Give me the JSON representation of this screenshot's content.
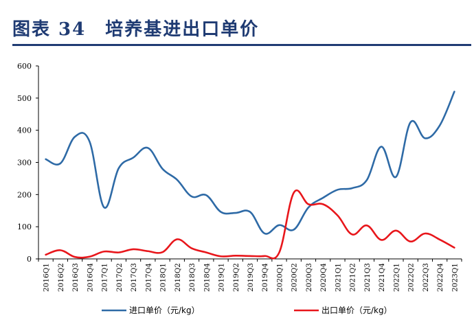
{
  "figure": {
    "title": "图表 34　培养基进出口单价"
  },
  "chart_data": {
    "type": "line",
    "categories": [
      "2016Q1",
      "2016Q2",
      "2016Q3",
      "2016Q4",
      "2017Q1",
      "2017Q2",
      "2017Q3",
      "2017Q4",
      "2018Q1",
      "2018Q2",
      "2018Q3",
      "2018Q4",
      "2019Q1",
      "2019Q2",
      "2019Q3",
      "2019Q4",
      "2020Q1",
      "2020Q2",
      "2020Q3",
      "2020Q4",
      "2021Q1",
      "2021Q2",
      "2021Q3",
      "2021Q4",
      "2022Q1",
      "2022Q2",
      "2022Q3",
      "2022Q4",
      "2023Q1"
    ],
    "series": [
      {
        "name": "进口单价（元/kg）",
        "color": "#2e6aa6",
        "values": [
          310,
          297,
          380,
          365,
          160,
          282,
          315,
          345,
          280,
          246,
          194,
          198,
          146,
          143,
          146,
          79,
          105,
          91,
          160,
          190,
          215,
          220,
          245,
          349,
          255,
          425,
          375,
          415,
          520
        ]
      },
      {
        "name": "出口单价（元/kg）",
        "color": "#e8161b",
        "values": [
          13,
          27,
          6,
          7,
          23,
          20,
          30,
          24,
          21,
          61,
          33,
          20,
          8,
          10,
          9,
          9,
          20,
          206,
          170,
          170,
          135,
          76,
          104,
          59,
          88,
          54,
          79,
          60,
          35
        ]
      }
    ],
    "ylim": [
      0,
      600
    ],
    "yticks": [
      0,
      100,
      200,
      300,
      400,
      500,
      600
    ],
    "legend_position": "bottom",
    "grid": false
  }
}
